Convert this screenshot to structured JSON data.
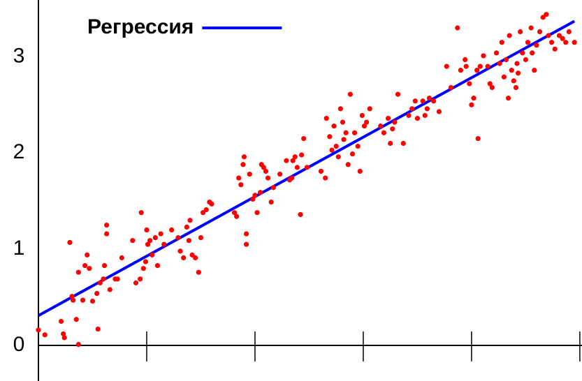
{
  "chart_data": {
    "type": "scatter",
    "xlim": [
      0,
      5.02
    ],
    "xticks": [
      0,
      1,
      2,
      3,
      4,
      5
    ],
    "ylim": [
      -0.37,
      3.59
    ],
    "yticks": [
      0,
      1,
      2,
      3
    ],
    "legend": "top-left",
    "series": [
      {
        "name": "Регрессия",
        "type": "line",
        "color": "#0000ff",
        "x": [
          0,
          4.95
        ],
        "values": [
          0.31,
          3.37
        ]
      },
      {
        "type": "scatter",
        "color": "#ff0000",
        "x": [
          0,
          0.06,
          0.21,
          0.23,
          0.24,
          0.29,
          0.31,
          0.32,
          0.35,
          0.37,
          0.37,
          0.41,
          0.43,
          0.45,
          0.47,
          0.5,
          0.54,
          0.55,
          0.57,
          0.6,
          0.61,
          0.63,
          0.63,
          0.66,
          0.71,
          0.73,
          0.77,
          0.87,
          0.9,
          0.94,
          0.95,
          0.97,
          0.99,
          1.0,
          1.01,
          1.03,
          1.05,
          1.08,
          1.1,
          1.13,
          1.16,
          1.23,
          1.29,
          1.31,
          1.34,
          1.37,
          1.39,
          1.4,
          1.42,
          1.45,
          1.48,
          1.5,
          1.52,
          1.55,
          1.58,
          1.6,
          1.81,
          1.83,
          1.85,
          1.87,
          1.89,
          1.9,
          1.92,
          1.92,
          1.95,
          1.98,
          2.0,
          2.02,
          2.05,
          2.06,
          2.08,
          2.1,
          2.12,
          2.15,
          2.17,
          2.23,
          2.29,
          2.32,
          2.34,
          2.35,
          2.37,
          2.39,
          2.42,
          2.43,
          2.45,
          2.48,
          2.61,
          2.65,
          2.66,
          2.69,
          2.71,
          2.73,
          2.75,
          2.77,
          2.79,
          2.81,
          2.82,
          2.84,
          2.86,
          2.88,
          2.9,
          2.92,
          2.95,
          2.97,
          2.99,
          3.01,
          3.03,
          3.06,
          3.16,
          3.19,
          3.23,
          3.25,
          3.27,
          3.29,
          3.32,
          3.37,
          3.42,
          3.45,
          3.48,
          3.5,
          3.55,
          3.57,
          3.59,
          3.61,
          3.65,
          3.7,
          3.77,
          3.81,
          3.87,
          3.9,
          3.94,
          3.95,
          3.98,
          4.0,
          4.02,
          4.05,
          4.06,
          4.08,
          4.11,
          4.15,
          4.17,
          4.19,
          4.23,
          4.26,
          4.28,
          4.3,
          4.32,
          4.34,
          4.35,
          4.37,
          4.39,
          4.41,
          4.42,
          4.43,
          4.45,
          4.47,
          4.5,
          4.52,
          4.55,
          4.56,
          4.58,
          4.6,
          4.63,
          4.66,
          4.69,
          4.71,
          4.74,
          4.77,
          4.81,
          4.84,
          4.87,
          4.9,
          4.95
        ],
        "values": [
          0.16,
          0.11,
          0.25,
          0.12,
          0.08,
          1.07,
          0.51,
          0.47,
          0.27,
          0.01,
          0.76,
          0.47,
          0.83,
          0.94,
          0.8,
          0.46,
          0.54,
          0.17,
          0.65,
          0.69,
          0.83,
          1.16,
          1.25,
          0.58,
          0.69,
          0.69,
          0.91,
          1.09,
          0.65,
          0.69,
          1.38,
          0.8,
          0.87,
          1.2,
          1.05,
          1.09,
          0.94,
          1.12,
          0.83,
          1.16,
          1.05,
          1.2,
          1.12,
          0.98,
          0.91,
          1.23,
          1.09,
          1.3,
          0.94,
          0.91,
          0.76,
          1.12,
          1.38,
          1.41,
          1.49,
          1.47,
          1.38,
          1.34,
          1.74,
          1.67,
          1.88,
          1.96,
          1.16,
          1.05,
          1.78,
          1.52,
          1.56,
          1.38,
          1.59,
          1.88,
          1.85,
          1.81,
          1.74,
          1.49,
          1.64,
          1.78,
          1.92,
          1.72,
          1.74,
          1.92,
          1.96,
          1.85,
          1.36,
          1.98,
          2.15,
          1.85,
          1.81,
          1.74,
          2.36,
          2.17,
          2.03,
          2.28,
          2.07,
          1.96,
          2.46,
          2.32,
          2.14,
          2.21,
          1.88,
          2.61,
          1.99,
          2.21,
          2.07,
          1.81,
          2.39,
          2.28,
          2.32,
          2.46,
          2.28,
          2.21,
          2.36,
          2.1,
          2.25,
          2.32,
          2.61,
          2.1,
          2.39,
          2.46,
          2.54,
          2.36,
          2.54,
          2.39,
          2.46,
          2.57,
          2.54,
          2.43,
          2.9,
          2.68,
          3.3,
          2.86,
          2.97,
          2.9,
          2.72,
          2.5,
          2.57,
          2.86,
          2.15,
          2.9,
          3.01,
          2.9,
          2.72,
          2.68,
          3.04,
          2.93,
          3.15,
          2.79,
          2.97,
          2.57,
          3.22,
          2.86,
          2.75,
          2.68,
          2.93,
          2.83,
          3.26,
          3.04,
          2.97,
          3.15,
          3.3,
          3.04,
          2.86,
          3.12,
          3.26,
          3.41,
          3.44,
          3.22,
          3.15,
          3.08,
          3.22,
          3.19,
          3.15,
          3.26,
          3.15
        ]
      }
    ]
  }
}
